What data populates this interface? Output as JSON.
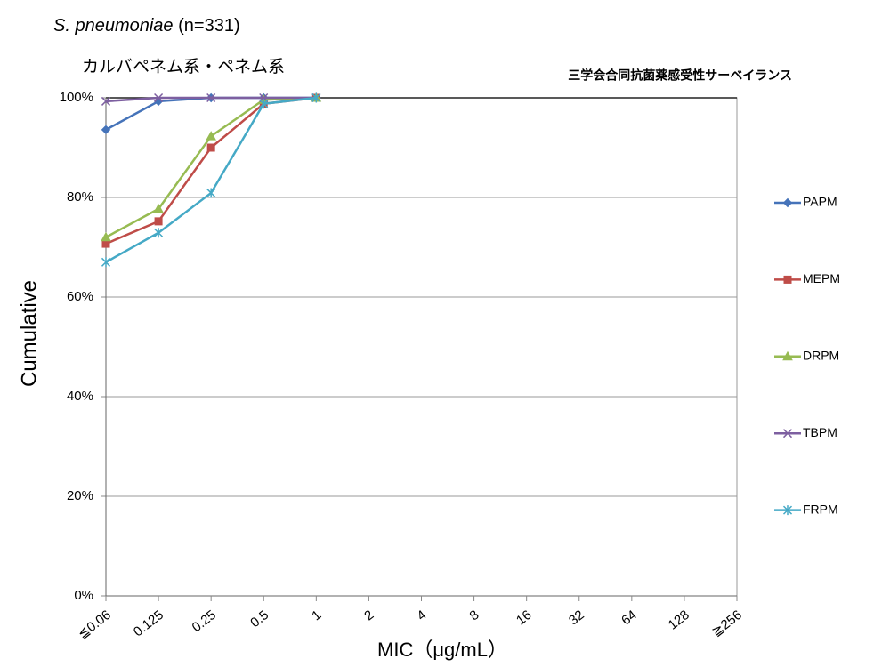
{
  "chart_data": {
    "type": "line",
    "title": {
      "species": "S. pneumoniae",
      "count": "(n=331)"
    },
    "subtitle": "カルバペネム系・ペネム系",
    "annotation": "三学会合同抗菌薬感受性サーベイランス",
    "ylabel": "Cumulative",
    "xlabel": "MIC（μg/mL）",
    "categories": [
      "≦0.06",
      "0.125",
      "0.25",
      "0.5",
      "1",
      "2",
      "4",
      "8",
      "16",
      "32",
      "64",
      "128",
      "≧256"
    ],
    "series": [
      {
        "name": "PAPM",
        "color": "#4573b9",
        "marker": "diamond",
        "values": [
          93.6,
          99.3,
          100,
          100,
          100,
          null,
          null,
          null,
          null,
          null,
          null,
          null,
          null
        ]
      },
      {
        "name": "MEPM",
        "color": "#bf4c48",
        "marker": "square",
        "values": [
          70.7,
          75.2,
          90.0,
          98.8,
          100,
          null,
          null,
          null,
          null,
          null,
          null,
          null,
          null
        ]
      },
      {
        "name": "DRPM",
        "color": "#97bb52",
        "marker": "triangle",
        "values": [
          72.0,
          77.7,
          92.3,
          99.6,
          100,
          null,
          null,
          null,
          null,
          null,
          null,
          null,
          null
        ]
      },
      {
        "name": "TBPM",
        "color": "#7d5fa0",
        "marker": "x",
        "values": [
          99.3,
          100,
          100,
          100,
          100,
          null,
          null,
          null,
          null,
          null,
          null,
          null,
          null
        ]
      },
      {
        "name": "FRPM",
        "color": "#45a9c6",
        "marker": "star",
        "values": [
          67.0,
          72.9,
          80.9,
          98.8,
          100,
          null,
          null,
          null,
          null,
          null,
          null,
          null,
          null
        ]
      }
    ],
    "ylim": [
      0,
      100
    ],
    "yticks": [
      {
        "value": 0,
        "label": "0%"
      },
      {
        "value": 20,
        "label": "20%"
      },
      {
        "value": 40,
        "label": "40%"
      },
      {
        "value": 60,
        "label": "60%"
      },
      {
        "value": 80,
        "label": "80%"
      },
      {
        "value": 100,
        "label": "100%"
      }
    ],
    "grid": true,
    "legend": "right"
  }
}
